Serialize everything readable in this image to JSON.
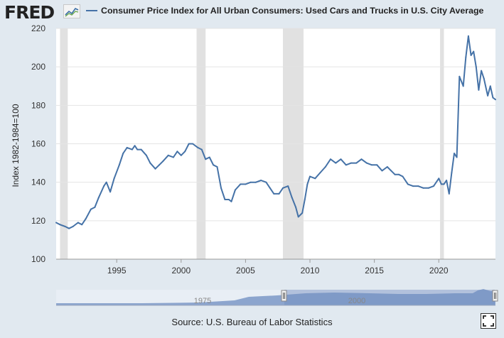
{
  "header": {
    "logo_text": "FRED",
    "legend_label": "Consumer Price Index for All Urban Consumers: Used Cars and Trucks in U.S. City Average"
  },
  "footer": {
    "source": "Source: U.S. Bureau of Labor Statistics"
  },
  "navigator": {
    "label_left": "1975",
    "label_right": "2000"
  },
  "icons": {
    "logo_graph": "line-graph-icon",
    "fullscreen": "fullscreen-icon"
  },
  "colors": {
    "series": "#4572a7",
    "recession": "#e1e1e1",
    "background": "#e1e9f0",
    "plot": "#ffffff"
  },
  "chart_data": {
    "type": "line",
    "title": "",
    "xlabel": "",
    "ylabel": "Index 1982-1984=100",
    "xlim": [
      1990.3,
      2024.4
    ],
    "ylim": [
      100,
      220
    ],
    "y_ticks": [
      "100",
      "120",
      "140",
      "160",
      "180",
      "200",
      "220"
    ],
    "x_ticks": [
      "1995",
      "2000",
      "2005",
      "2010",
      "2015",
      "2020"
    ],
    "grid": "horizontal",
    "recessions": [
      [
        1990.6,
        1991.2
      ],
      [
        2001.2,
        2001.9
      ],
      [
        2007.9,
        2009.5
      ],
      [
        2020.1,
        2020.4
      ]
    ],
    "series": [
      {
        "name": "Consumer Price Index for All Urban Consumers: Used Cars and Trucks in U.S. City Average",
        "x": [
          1990.3,
          1990.6,
          1991.0,
          1991.3,
          1991.6,
          1992.0,
          1992.3,
          1992.6,
          1993.0,
          1993.3,
          1993.6,
          1994.0,
          1994.2,
          1994.5,
          1994.8,
          1995.2,
          1995.5,
          1995.8,
          1996.2,
          1996.4,
          1996.6,
          1996.9,
          1997.3,
          1997.6,
          1998.0,
          1998.3,
          1998.6,
          1999.0,
          1999.4,
          1999.7,
          2000.0,
          2000.3,
          2000.6,
          2000.9,
          2001.3,
          2001.6,
          2001.9,
          2002.2,
          2002.5,
          2002.8,
          2003.1,
          2003.4,
          2003.7,
          2003.9,
          2004.2,
          2004.6,
          2005.0,
          2005.4,
          2005.8,
          2006.2,
          2006.6,
          2006.9,
          2007.2,
          2007.6,
          2007.9,
          2008.3,
          2008.6,
          2008.9,
          2009.1,
          2009.4,
          2009.6,
          2009.8,
          2010.0,
          2010.4,
          2010.8,
          2011.2,
          2011.6,
          2012.0,
          2012.4,
          2012.8,
          2013.2,
          2013.6,
          2014.0,
          2014.4,
          2014.8,
          2015.2,
          2015.6,
          2016.0,
          2016.3,
          2016.6,
          2016.9,
          2017.2,
          2017.6,
          2018.0,
          2018.4,
          2018.8,
          2019.2,
          2019.6,
          2020.0,
          2020.2,
          2020.4,
          2020.6,
          2020.8,
          2021.0,
          2021.2,
          2021.4,
          2021.6,
          2021.9,
          2022.1,
          2022.3,
          2022.5,
          2022.7,
          2022.9,
          2023.1,
          2023.3,
          2023.5,
          2023.8,
          2024.0,
          2024.2,
          2024.4
        ],
        "values": [
          119,
          118,
          117,
          116,
          117,
          119,
          118,
          121,
          126,
          127,
          132,
          138,
          140,
          135,
          142,
          149,
          155,
          158,
          157,
          159,
          157,
          157,
          154,
          150,
          147,
          149,
          151,
          154,
          153,
          156,
          154,
          156,
          160,
          160,
          158,
          157,
          152,
          153,
          149,
          148,
          137,
          131,
          131,
          130,
          136,
          139,
          139,
          140,
          140,
          141,
          140,
          137,
          134,
          134,
          137,
          138,
          132,
          127,
          122,
          124,
          131,
          139,
          143,
          142,
          145,
          148,
          152,
          150,
          152,
          149,
          150,
          150,
          152,
          150,
          149,
          149,
          146,
          148,
          146,
          144,
          144,
          143,
          139,
          138,
          138,
          137,
          137,
          138,
          142,
          139,
          139,
          141,
          134,
          145,
          155,
          153,
          195,
          190,
          205,
          216,
          206,
          208,
          200,
          188,
          198,
          194,
          185,
          190,
          184,
          183
        ]
      }
    ]
  }
}
